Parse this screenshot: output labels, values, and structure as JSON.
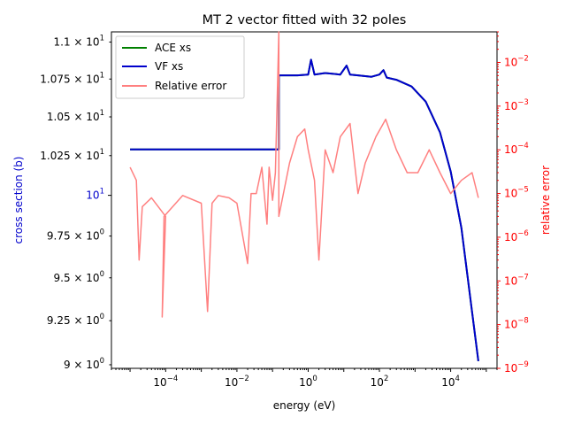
{
  "chart_data": {
    "type": "line",
    "title": "MT 2 vector fitted with 32 poles",
    "xlabel": "energy (eV)",
    "ylabel": "cross section (b)",
    "y2label": "relative error",
    "xscale": "log",
    "yscale": "log",
    "y2scale": "log",
    "xlim": [
      3e-06,
      200000
    ],
    "ylim": [
      8.98,
      11.07
    ],
    "y2lim": [
      1e-09,
      0.05
    ],
    "grid": false,
    "legend_position": "top-left",
    "x_ticks": [
      {
        "value": 0.0001,
        "base": "10",
        "exp": "−4"
      },
      {
        "value": 0.01,
        "base": "10",
        "exp": "−2"
      },
      {
        "value": 1,
        "base": "10",
        "exp": "0"
      },
      {
        "value": 100,
        "base": "10",
        "exp": "2"
      },
      {
        "value": 10000,
        "base": "10",
        "exp": "4"
      }
    ],
    "y_ticks": [
      {
        "value": 9.0,
        "mant": "9 × 10",
        "exp": "0"
      },
      {
        "value": 9.25,
        "mant": "9.25 × 10",
        "exp": "0"
      },
      {
        "value": 9.5,
        "mant": "9.5 × 10",
        "exp": "0"
      },
      {
        "value": 9.75,
        "mant": "9.75 × 10",
        "exp": "0"
      },
      {
        "value": 10,
        "mant": "10",
        "exp": "1",
        "major": true
      },
      {
        "value": 10.25,
        "mant": "1.025 × 10",
        "exp": "1"
      },
      {
        "value": 10.5,
        "mant": "1.05 × 10",
        "exp": "1"
      },
      {
        "value": 10.75,
        "mant": "1.075 × 10",
        "exp": "1"
      },
      {
        "value": 11.0,
        "mant": "1.1 × 10",
        "exp": "1"
      }
    ],
    "y2_ticks": [
      {
        "value": 1e-09,
        "base": "10",
        "exp": "−9"
      },
      {
        "value": 1e-08,
        "base": "10",
        "exp": "−8"
      },
      {
        "value": 1e-07,
        "base": "10",
        "exp": "−7"
      },
      {
        "value": 1e-06,
        "base": "10",
        "exp": "−6"
      },
      {
        "value": 1e-05,
        "base": "10",
        "exp": "−5"
      },
      {
        "value": 0.0001,
        "base": "10",
        "exp": "−4"
      },
      {
        "value": 0.001,
        "base": "10",
        "exp": "−3"
      },
      {
        "value": 0.01,
        "base": "10",
        "exp": "−2"
      }
    ],
    "series": [
      {
        "name": "ACE xs",
        "color": "#008000",
        "axis": "left",
        "x": [
          1e-05,
          0.1,
          0.15,
          0.15,
          0.5,
          1.0,
          1.2,
          1.5,
          3,
          8,
          12,
          15,
          25,
          60,
          100,
          130,
          160,
          300,
          800,
          2000,
          5000,
          10000,
          20000,
          40000,
          60000
        ],
        "y": [
          10.29,
          10.29,
          10.29,
          10.775,
          10.775,
          10.78,
          10.88,
          10.78,
          10.79,
          10.78,
          10.84,
          10.78,
          10.775,
          10.765,
          10.78,
          10.81,
          10.76,
          10.745,
          10.7,
          10.6,
          10.4,
          10.15,
          9.8,
          9.3,
          9.02
        ]
      },
      {
        "name": "VF xs",
        "color": "#0000cc",
        "axis": "left",
        "x": [
          1e-05,
          0.1,
          0.15,
          0.15,
          0.5,
          1.0,
          1.2,
          1.5,
          3,
          8,
          12,
          15,
          25,
          60,
          100,
          130,
          160,
          300,
          800,
          2000,
          5000,
          10000,
          20000,
          40000,
          60000
        ],
        "y": [
          10.29,
          10.29,
          10.29,
          10.775,
          10.775,
          10.78,
          10.88,
          10.78,
          10.79,
          10.78,
          10.84,
          10.78,
          10.775,
          10.765,
          10.78,
          10.81,
          10.76,
          10.745,
          10.7,
          10.6,
          10.4,
          10.15,
          9.8,
          9.3,
          9.02
        ]
      },
      {
        "name": "Relative error",
        "color": "#ff8080",
        "axis": "right",
        "x": [
          1e-05,
          1.5e-05,
          1.8e-05,
          2.2e-05,
          4e-05,
          0.0001,
          8e-05,
          9e-05,
          0.0003,
          0.001,
          0.0015,
          0.002,
          0.003,
          0.006,
          0.01,
          0.02,
          0.025,
          0.035,
          0.05,
          0.07,
          0.08,
          0.1,
          0.12,
          0.15,
          0.15,
          0.3,
          0.5,
          0.8,
          1.0,
          1.5,
          2,
          3,
          5,
          8,
          15,
          25,
          40,
          80,
          150,
          300,
          600,
          1200,
          2500,
          5000,
          10000,
          20000,
          40000,
          60000
        ],
        "y": [
          4e-05,
          2e-05,
          3e-07,
          5e-06,
          8e-06,
          3e-06,
          1.5e-08,
          3e-06,
          9e-06,
          6e-06,
          2e-08,
          6e-06,
          9e-06,
          8e-06,
          6e-06,
          2.5e-07,
          1e-05,
          1e-05,
          4e-05,
          2e-06,
          4e-05,
          7e-06,
          3e-05,
          0.05,
          3e-06,
          5e-05,
          0.0002,
          0.0003,
          0.0001,
          2e-05,
          3e-07,
          0.0001,
          3e-05,
          0.0002,
          0.0004,
          1e-05,
          5e-05,
          0.0002,
          0.0005,
          0.0001,
          3e-05,
          3e-05,
          0.0001,
          3e-05,
          1e-05,
          2e-05,
          3e-05,
          8e-06
        ]
      }
    ]
  }
}
